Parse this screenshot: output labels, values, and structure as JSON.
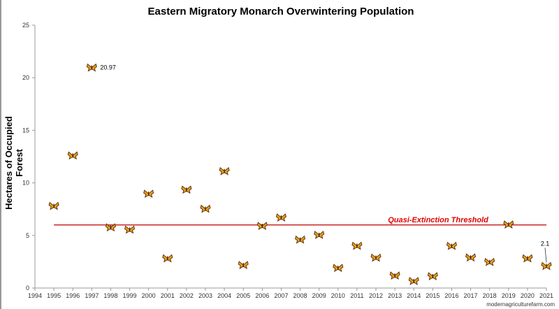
{
  "chart_data": {
    "type": "scatter",
    "title": "Eastern Migratory Monarch Overwintering Population",
    "xlabel": "",
    "ylabel": "Hectares of Occupied Forest",
    "xlim": [
      1994,
      2021
    ],
    "ylim": [
      0,
      25
    ],
    "yticks": [
      0,
      5,
      10,
      15,
      20,
      25
    ],
    "xticks": [
      1994,
      1995,
      1996,
      1997,
      1998,
      1999,
      2000,
      2001,
      2002,
      2003,
      2004,
      2005,
      2006,
      2007,
      2008,
      2009,
      2010,
      2011,
      2012,
      2013,
      2014,
      2015,
      2016,
      2017,
      2018,
      2019,
      2020,
      2021
    ],
    "grid": false,
    "marker": "butterfly-icon",
    "x": [
      1995,
      1996,
      1997,
      1998,
      1999,
      2000,
      2001,
      2002,
      2003,
      2004,
      2005,
      2006,
      2007,
      2008,
      2009,
      2010,
      2011,
      2012,
      2013,
      2014,
      2015,
      2016,
      2017,
      2018,
      2019,
      2020,
      2021
    ],
    "y": [
      7.81,
      12.61,
      20.97,
      5.77,
      5.56,
      8.97,
      2.83,
      9.36,
      7.54,
      11.12,
      2.19,
      5.91,
      6.71,
      4.61,
      5.06,
      1.92,
      4.02,
      2.89,
      1.19,
      0.67,
      1.13,
      4.01,
      2.91,
      2.48,
      6.05,
      2.83,
      2.1
    ],
    "annotations": [
      {
        "x": 1997,
        "y": 20.97,
        "text": "20.97"
      },
      {
        "x": 2021,
        "y": 2.1,
        "text": "2.1"
      }
    ],
    "threshold": {
      "y": 6,
      "label": "Quasi-Extinction Threshold",
      "color": "#c00000"
    }
  },
  "watermark": "modernagriculturefarm.com"
}
